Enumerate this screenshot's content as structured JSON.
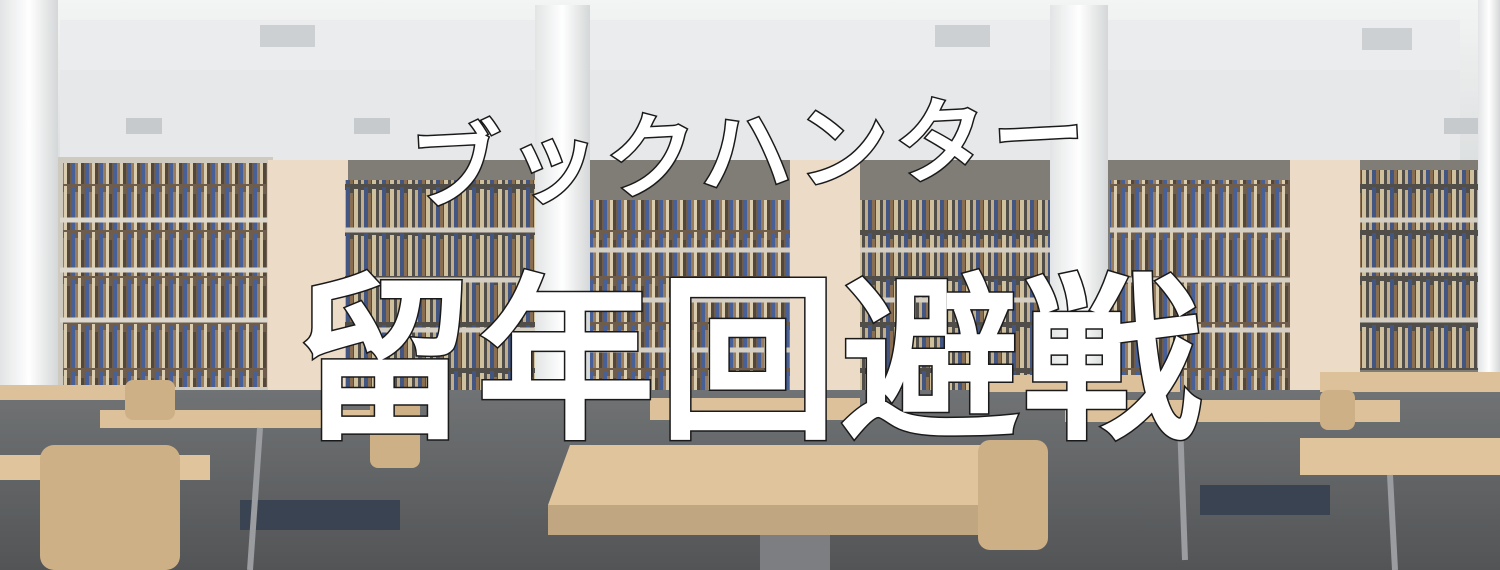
{
  "banner": {
    "title_top": "ブックハンター",
    "title_main": "留年回避戦"
  },
  "colors": {
    "title_fill": "#ffffff",
    "title_outline": "#1a1a1a",
    "table_wood": "#d9b98c",
    "shelf_book_blue": "#2e4c8a"
  },
  "background": {
    "scene": "library-reading-room"
  }
}
